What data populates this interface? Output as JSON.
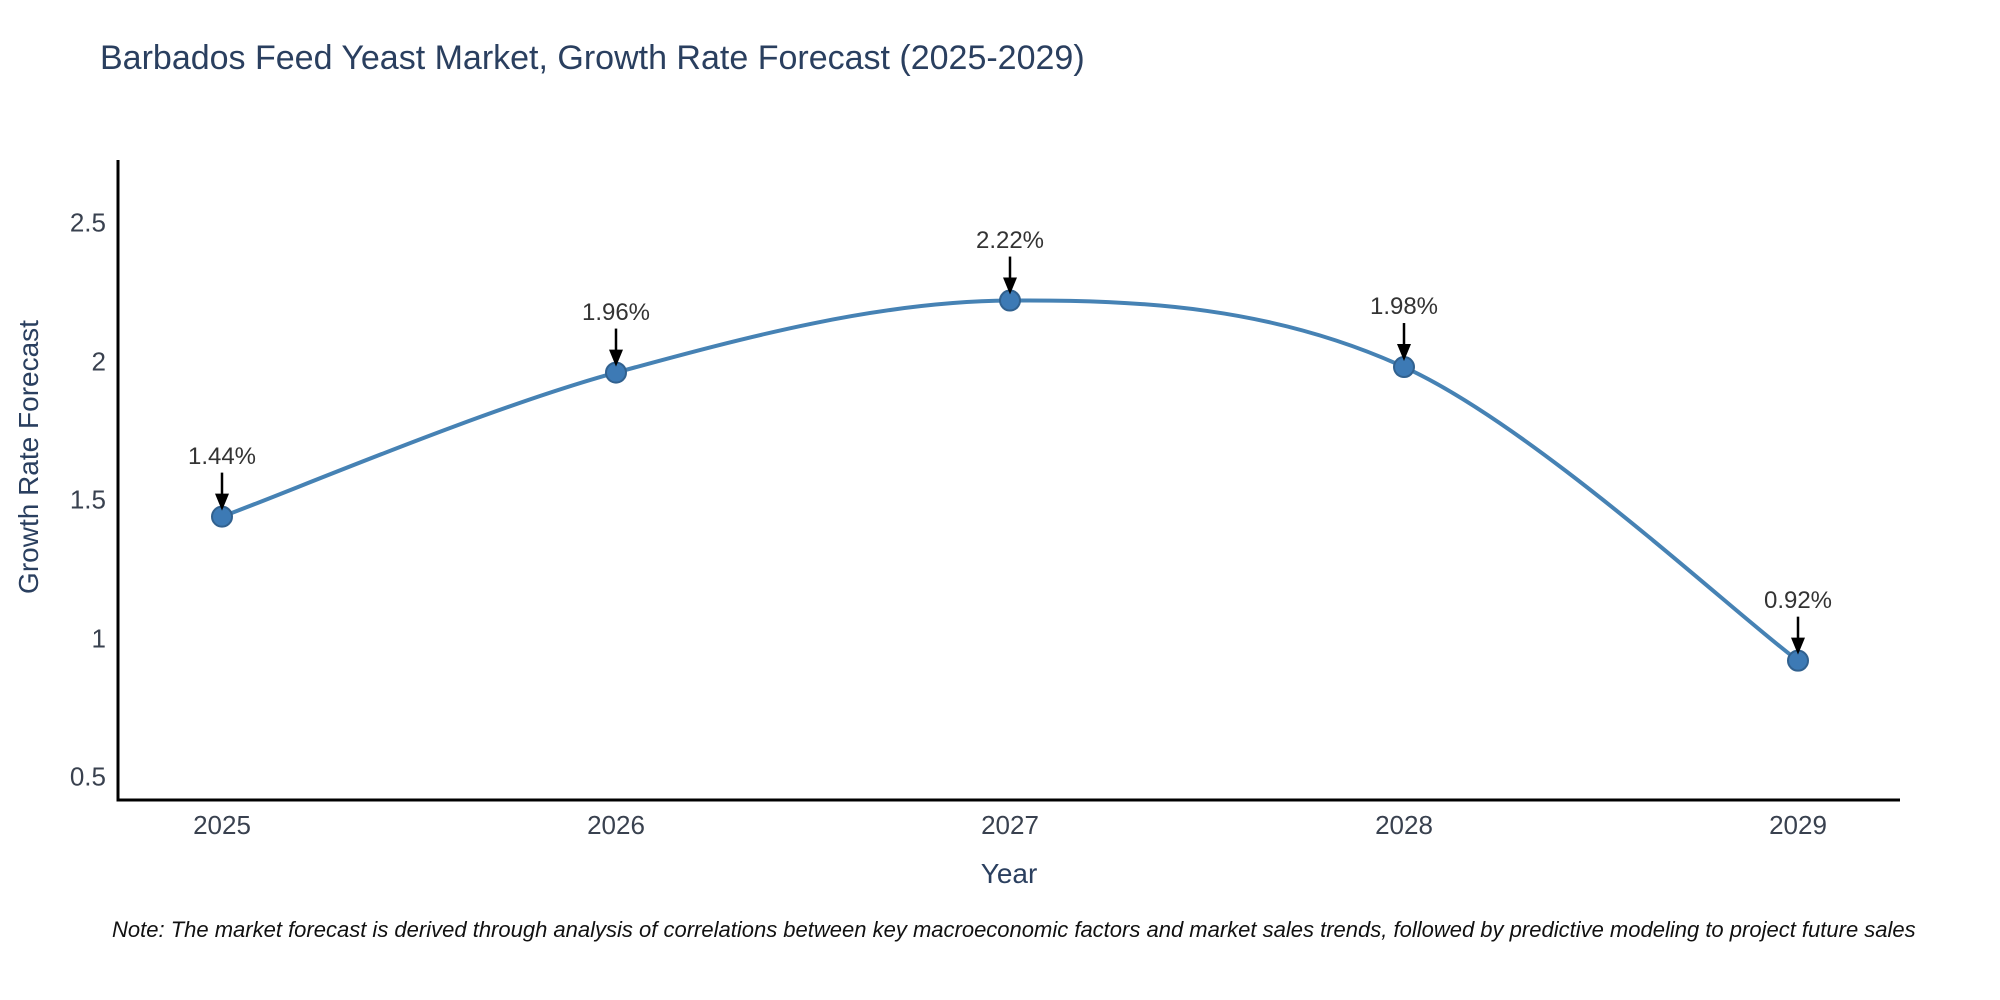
{
  "page": {
    "background": "#ffffff"
  },
  "title": {
    "text": "Barbados Feed Yeast Market, Growth Rate Forecast (2025-2029)",
    "color": "#2a3f5f"
  },
  "chart_data": {
    "type": "line",
    "x": [
      2025,
      2026,
      2027,
      2028,
      2029
    ],
    "x_tick_labels": [
      "2025",
      "2026",
      "2027",
      "2028",
      "2029"
    ],
    "series": [
      {
        "name": "Growth Rate Forecast",
        "values": [
          1.44,
          1.96,
          2.22,
          1.98,
          0.92
        ]
      }
    ],
    "point_labels": [
      "1.44%",
      "1.96%",
      "2.22%",
      "1.98%",
      "0.92%"
    ],
    "title": "Barbados Feed Yeast Market, Growth Rate Forecast (2025-2029)",
    "xlabel": "Year",
    "ylabel": "Growth Rate Forecast",
    "yticks": [
      0.5,
      1,
      1.5,
      2,
      2.5
    ],
    "ytick_labels": [
      "0.5",
      "1",
      "1.5",
      "2",
      "2.5"
    ],
    "ylim": [
      0.35,
      2.8
    ],
    "grid": false,
    "legend": "none",
    "colors": {
      "line": "#4682b4",
      "marker_fill": "#3d7ab5",
      "marker_edge": "#31618f",
      "axis_spine": "#000000",
      "annotation_arrow": "#000000",
      "annotation_text": "#333333",
      "tick_text": "#39414f",
      "axis_title_text": "#2a3f5f"
    }
  },
  "note": {
    "text": "Note: The market forecast is derived through analysis of correlations between key macroeconomic factors and market sales trends, followed by predictive modeling to project future sales"
  }
}
